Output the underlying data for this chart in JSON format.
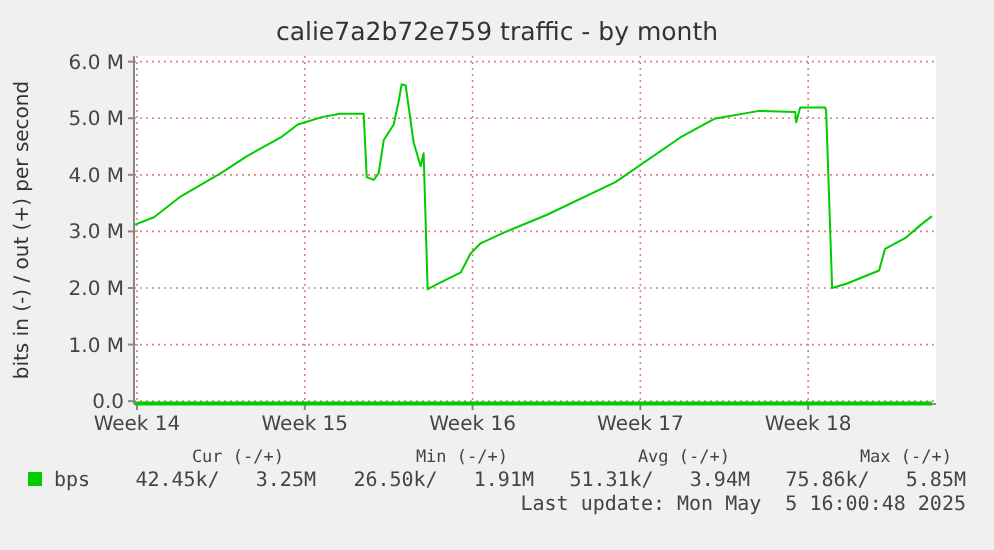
{
  "chart_data": {
    "type": "line",
    "title": "calie7a2b72e759 traffic - by month",
    "ylabel": "bits in (-) / out (+) per second",
    "xlim": [
      "2025-03-30T21:00",
      "2025-05-03T08:00"
    ],
    "ylim": [
      -0.05,
      6.1
    ],
    "xticks": [
      {
        "value": "2025-03-31",
        "label": "Week 14"
      },
      {
        "value": "2025-04-07",
        "label": "Week 15"
      },
      {
        "value": "2025-04-14",
        "label": "Week 16"
      },
      {
        "value": "2025-04-21",
        "label": "Week 17"
      },
      {
        "value": "2025-04-28",
        "label": "Week 18"
      }
    ],
    "yticks": [
      {
        "value": 0,
        "label": "0.0"
      },
      {
        "value": 1,
        "label": "1.0 M"
      },
      {
        "value": 2,
        "label": "2.0 M"
      },
      {
        "value": 3,
        "label": "3.0 M"
      },
      {
        "value": 4,
        "label": "4.0 M"
      },
      {
        "value": 5,
        "label": "5.0 M"
      },
      {
        "value": 6,
        "label": "6.0 M"
      }
    ],
    "grid": true,
    "legend": "bottom left",
    "series": [
      {
        "name": "bps",
        "color": "#00cc00",
        "x": [
          "2025-03-30T22:00",
          "2025-03-31T17:00",
          "2025-04-01T20:00",
          "2025-04-03T12:00",
          "2025-04-04T15:00",
          "2025-04-06T00:00",
          "2025-04-06T17:00",
          "2025-04-07T17:00",
          "2025-04-08T11:00",
          "2025-04-09T11:00",
          "2025-04-09T14:00",
          "2025-04-09T21:00",
          "2025-04-10T02:00",
          "2025-04-10T07:00",
          "2025-04-10T17:00",
          "2025-04-10T22:00",
          "2025-04-11T01:00",
          "2025-04-11T05:00",
          "2025-04-11T13:00",
          "2025-04-11T20:00",
          "2025-04-11T23:00",
          "2025-04-12T03:00",
          "2025-04-12T16:00",
          "2025-04-13T12:00",
          "2025-04-13T22:00",
          "2025-04-14T08:00",
          "2025-04-15T10:00",
          "2025-04-17T02:00",
          "2025-04-19T23:00",
          "2025-04-22T16:00",
          "2025-04-24T02:00",
          "2025-04-25T23:00",
          "2025-04-27T11:00",
          "2025-04-27T12:00",
          "2025-04-27T16:00",
          "2025-04-28T17:00",
          "2025-04-28T18:00",
          "2025-04-29T00:00",
          "2025-04-29T15:00",
          "2025-04-30T23:00",
          "2025-05-01T05:00",
          "2025-05-02T01:00",
          "2025-05-02T17:00",
          "2025-05-03T04:00"
        ],
        "values": [
          3.12,
          3.25,
          3.62,
          4.03,
          4.34,
          4.66,
          4.89,
          5.02,
          5.08,
          5.08,
          3.96,
          3.91,
          4.03,
          4.61,
          4.89,
          5.3,
          5.6,
          5.58,
          4.57,
          4.15,
          4.38,
          1.98,
          2.1,
          2.27,
          2.61,
          2.79,
          3.0,
          3.29,
          3.87,
          4.66,
          4.99,
          5.13,
          5.11,
          4.93,
          5.19,
          5.19,
          5.13,
          2.0,
          2.08,
          2.31,
          2.69,
          2.88,
          3.12,
          3.27
        ]
      },
      {
        "color": "#00cc00",
        "x": [
          "2025-03-30T22:00",
          "2025-05-03T04:00"
        ],
        "values": [
          -0.04,
          -0.04
        ]
      }
    ],
    "annotations": [
      "Cur (-/+)",
      "Min (-/+)",
      "Avg (-/+)",
      "Max (-/+)",
      "42.45k/   3.25M",
      "26.50k/   1.91M",
      "51.31k/   3.94M",
      "75.86k/   5.85M",
      "Last update: Mon May  5 16:00:48 2025"
    ]
  }
}
